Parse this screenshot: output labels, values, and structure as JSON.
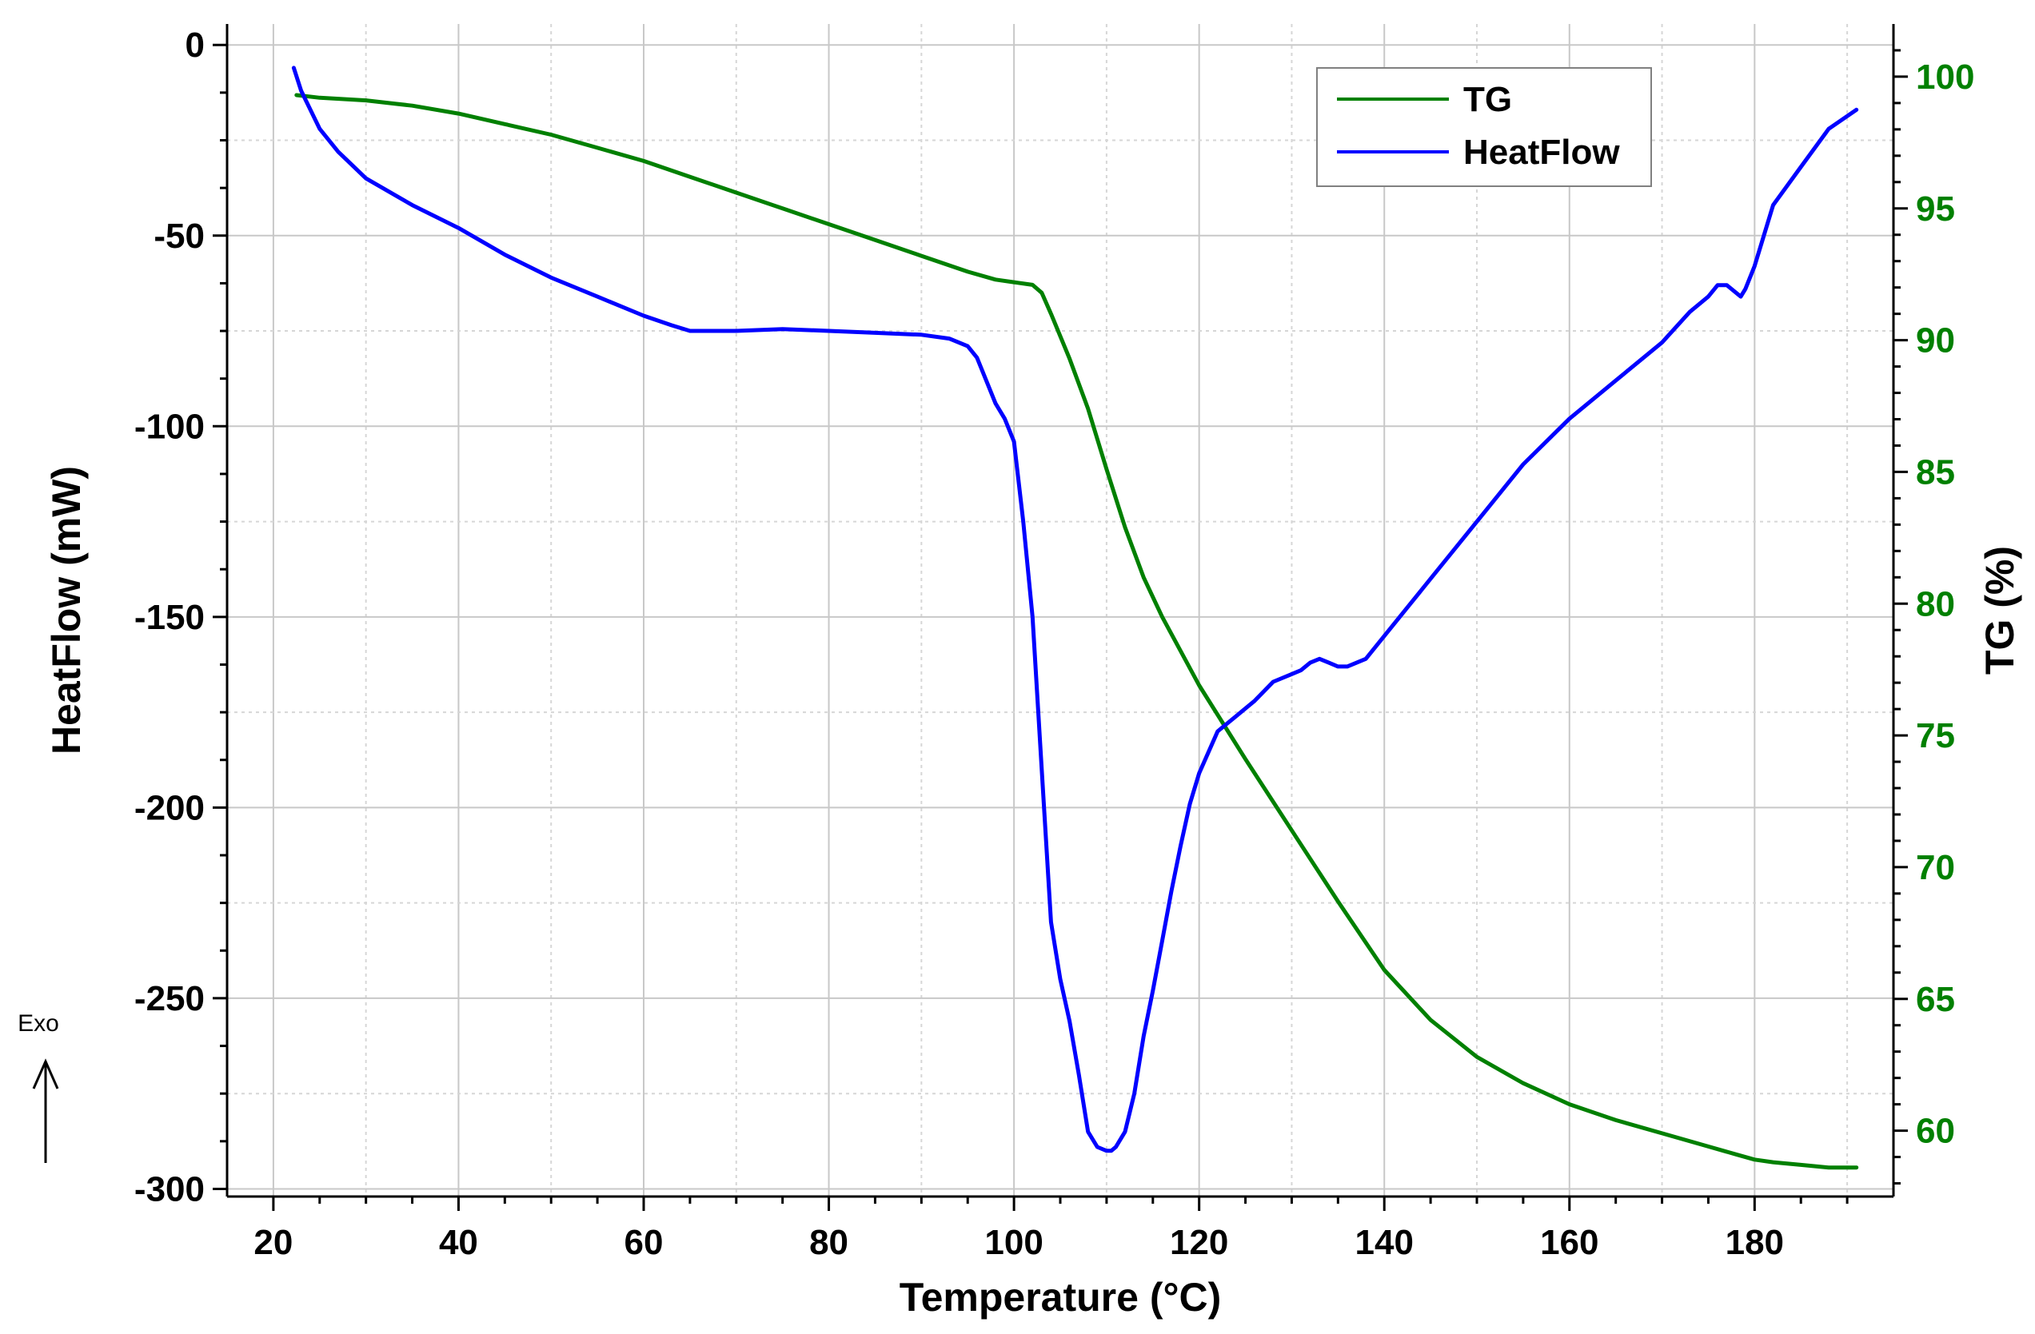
{
  "chart_data": {
    "type": "line",
    "xlabel": "Temperature (°C)",
    "ylabel_left": "HeatFlow (mW)",
    "ylabel_right": "TG (%)",
    "xlim": [
      15,
      195
    ],
    "ylim_left": [
      -302,
      5.5
    ],
    "ylim_right": [
      57.5,
      102
    ],
    "x_ticks": [
      20,
      40,
      60,
      80,
      100,
      120,
      140,
      160,
      180
    ],
    "y_left_ticks": [
      0,
      -50,
      -100,
      -150,
      -200,
      -250,
      -300
    ],
    "y_right_ticks": [
      100,
      95,
      90,
      85,
      80,
      75,
      70,
      65,
      60
    ],
    "grid": true,
    "legend_position": "top-right",
    "exo_label": "Exo",
    "colors": {
      "tg": "#008000",
      "heatflow": "#0000ff",
      "right_axis": "#008000"
    },
    "series": [
      {
        "name": "TG",
        "axis": "right",
        "x": [
          22.5,
          25,
          30,
          35,
          40,
          45,
          50,
          55,
          60,
          65,
          70,
          75,
          80,
          85,
          90,
          95,
          98,
          100,
          102,
          103,
          104,
          106,
          108,
          110,
          112,
          114,
          116,
          120,
          125,
          130,
          135,
          140,
          145,
          150,
          155,
          160,
          165,
          170,
          175,
          178,
          180,
          182,
          185,
          188,
          191
        ],
        "y": [
          99.3,
          99.2,
          99.1,
          98.9,
          98.6,
          98.2,
          97.8,
          97.3,
          96.8,
          96.2,
          95.6,
          95.0,
          94.4,
          93.8,
          93.2,
          92.6,
          92.3,
          92.2,
          92.1,
          91.8,
          91.0,
          89.3,
          87.4,
          85.1,
          82.9,
          81.0,
          79.5,
          76.9,
          74.1,
          71.4,
          68.7,
          66.1,
          64.2,
          62.8,
          61.8,
          61.0,
          60.4,
          59.9,
          59.4,
          59.1,
          58.9,
          58.8,
          58.7,
          58.6,
          58.6
        ]
      },
      {
        "name": "HeatFlow",
        "axis": "left",
        "x": [
          22.2,
          23,
          25,
          27,
          30,
          35,
          40,
          45,
          50,
          55,
          60,
          63,
          65,
          70,
          75,
          80,
          85,
          90,
          93,
          95,
          96,
          97,
          98,
          99,
          100,
          101,
          102,
          103,
          104,
          105,
          106,
          107,
          108,
          109,
          110,
          110.5,
          111,
          112,
          113,
          114,
          115,
          116,
          117,
          118,
          119,
          120,
          122,
          124,
          126,
          128,
          130,
          131,
          132,
          133,
          134,
          135,
          136,
          138,
          140,
          145,
          150,
          155,
          160,
          165,
          170,
          173,
          175,
          176,
          176.5,
          177,
          178,
          178.5,
          179,
          180,
          182,
          185,
          188,
          191
        ],
        "y": [
          -6,
          -12,
          -22,
          -28,
          -35,
          -42,
          -48,
          -55,
          -61,
          -66,
          -71,
          -73.5,
          -75,
          -75,
          -74.5,
          -75,
          -75.5,
          -76,
          -77,
          -79,
          -82,
          -88,
          -94,
          -98,
          -104,
          -125,
          -150,
          -190,
          -230,
          -245,
          -256,
          -270,
          -285,
          -289,
          -290,
          -290,
          -289,
          -285,
          -275,
          -260,
          -248,
          -235,
          -222,
          -210,
          -199,
          -191,
          -180,
          -176,
          -172,
          -167,
          -165,
          -164,
          -162,
          -161,
          -162,
          -163,
          -163,
          -161,
          -155,
          -140,
          -125,
          -110,
          -98,
          -88,
          -78,
          -70,
          -66,
          -63,
          -63,
          -63,
          -65,
          -66,
          -64,
          -58,
          -42,
          -32,
          -22,
          -17
        ]
      }
    ]
  }
}
